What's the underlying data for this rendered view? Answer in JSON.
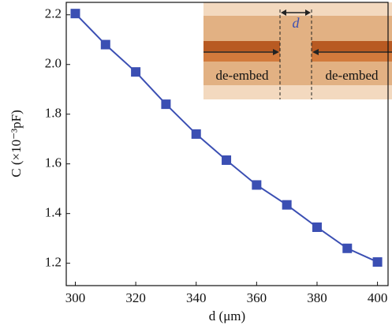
{
  "chart_data": {
    "type": "line",
    "x_label": "d (μm)",
    "y_label": "C (×10⁻³pF)",
    "x": [
      300,
      310,
      320,
      330,
      340,
      350,
      360,
      370,
      380,
      390,
      400
    ],
    "series": [
      {
        "color": "#3b4fb3",
        "values": [
          2.205,
          2.08,
          1.97,
          1.84,
          1.72,
          1.615,
          1.515,
          1.435,
          1.345,
          1.26,
          1.205
        ]
      }
    ],
    "xlim": [
      297,
      403.5
    ],
    "xticks": [
      300,
      320,
      340,
      360,
      380,
      400
    ],
    "ylim": [
      1.11,
      2.25
    ],
    "yticks": [
      {
        "value": 1.2,
        "label": "1.2"
      },
      {
        "value": 1.4,
        "label": "1.4"
      },
      {
        "value": 1.6,
        "label": "1.6"
      },
      {
        "value": 1.8,
        "label": "1.8"
      },
      {
        "value": 2.0,
        "label": "2.0"
      },
      {
        "value": 2.2,
        "label": "2.2"
      }
    ],
    "annotations": [
      "d",
      "de-embed",
      "de-embed"
    ]
  }
}
